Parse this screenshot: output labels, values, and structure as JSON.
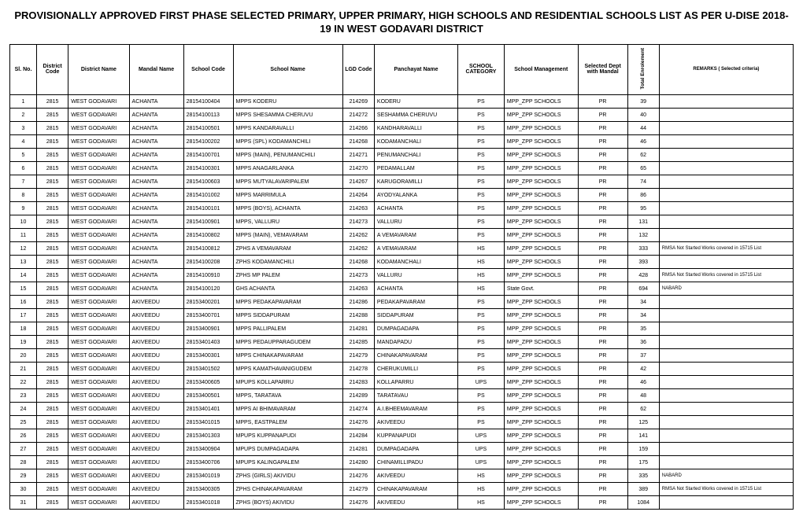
{
  "title": "PROVISIONALLY APPROVED FIRST PHASE SELECTED PRIMARY, UPPER PRIMARY, HIGH SCHOOLS AND RESIDENTIAL SCHOOLS LIST AS PER U-DISE 2018-19 IN WEST GODAVARI DISTRICT",
  "columns": [
    "Sl. No.",
    "District Code",
    "District Name",
    "Mandal Name",
    "School Code",
    "School Name",
    "LGD Code",
    "Panchayat Name",
    "SCHOOL CATEGORY",
    "School Management",
    "Selected Dept with Mandal",
    "Total Enrolement",
    "REMARKS ( Selected criteria)"
  ],
  "rows": [
    [
      "1",
      "2815",
      "WEST GODAVARI",
      "ACHANTA",
      "28154100404",
      "MPPS KODERU",
      "214269",
      "KODERU",
      "PS",
      "MPP_ZPP SCHOOLS",
      "PR",
      "39",
      ""
    ],
    [
      "2",
      "2815",
      "WEST GODAVARI",
      "ACHANTA",
      "28154100113",
      "MPPS SHESAMMA CHERUVU",
      "214272",
      "SESHAMMA CHERUVU",
      "PS",
      "MPP_ZPP SCHOOLS",
      "PR",
      "40",
      ""
    ],
    [
      "3",
      "2815",
      "WEST GODAVARI",
      "ACHANTA",
      "28154100501",
      "MPPS KANDARAVALLI",
      "214266",
      "KANDHARAVALLI",
      "PS",
      "MPP_ZPP SCHOOLS",
      "PR",
      "44",
      ""
    ],
    [
      "4",
      "2815",
      "WEST GODAVARI",
      "ACHANTA",
      "28154100202",
      "MPPS (SPL) KODAMANCHILI",
      "214268",
      "KODAMANCHALI",
      "PS",
      "MPP_ZPP SCHOOLS",
      "PR",
      "46",
      ""
    ],
    [
      "5",
      "2815",
      "WEST GODAVARI",
      "ACHANTA",
      "28154100701",
      "MPPS (MAIN), PENUMANCHILI",
      "214271",
      "PENUMANCHALI",
      "PS",
      "MPP_ZPP SCHOOLS",
      "PR",
      "62",
      ""
    ],
    [
      "6",
      "2815",
      "WEST GODAVARI",
      "ACHANTA",
      "28154100301",
      "MPPS ANAGARLANKA",
      "214270",
      "PEDAMALLAM",
      "PS",
      "MPP_ZPP SCHOOLS",
      "PR",
      "65",
      ""
    ],
    [
      "7",
      "2815",
      "WEST GODAVARI",
      "ACHANTA",
      "28154100603",
      "MPPS MUTYALAVARIPALEM",
      "214267",
      "KARUGORAMILLI",
      "PS",
      "MPP_ZPP SCHOOLS",
      "PR",
      "74",
      ""
    ],
    [
      "8",
      "2815",
      "WEST GODAVARI",
      "ACHANTA",
      "28154101002",
      "MPPS MARRIMULA",
      "214264",
      "AYODYALANKA",
      "PS",
      "MPP_ZPP SCHOOLS",
      "PR",
      "86",
      ""
    ],
    [
      "9",
      "2815",
      "WEST GODAVARI",
      "ACHANTA",
      "28154100101",
      "MPPS (BOYS), ACHANTA",
      "214263",
      "ACHANTA",
      "PS",
      "MPP_ZPP SCHOOLS",
      "PR",
      "95",
      ""
    ],
    [
      "10",
      "2815",
      "WEST GODAVARI",
      "ACHANTA",
      "28154100901",
      "MPPS, VALLURU",
      "214273",
      "VALLURU",
      "PS",
      "MPP_ZPP SCHOOLS",
      "PR",
      "131",
      ""
    ],
    [
      "11",
      "2815",
      "WEST GODAVARI",
      "ACHANTA",
      "28154100802",
      "MPPS (MAIN), VEMAVARAM",
      "214262",
      "A VEMAVARAM",
      "PS",
      "MPP_ZPP SCHOOLS",
      "PR",
      "132",
      ""
    ],
    [
      "12",
      "2815",
      "WEST GODAVARI",
      "ACHANTA",
      "28154100812",
      "ZPHS A VEMAVARAM",
      "214262",
      "A VEMAVARAM",
      "HS",
      "MPP_ZPP SCHOOLS",
      "PR",
      "333",
      "RMSA Not Started Works covered in 15715 List"
    ],
    [
      "13",
      "2815",
      "WEST GODAVARI",
      "ACHANTA",
      "28154100208",
      "ZPHS KODAMANCHILI",
      "214268",
      "KODAMANCHALI",
      "HS",
      "MPP_ZPP SCHOOLS",
      "PR",
      "393",
      ""
    ],
    [
      "14",
      "2815",
      "WEST GODAVARI",
      "ACHANTA",
      "28154100910",
      "ZPHS MP PALEM",
      "214273",
      "VALLURU",
      "HS",
      "MPP_ZPP SCHOOLS",
      "PR",
      "428",
      "RMSA Not Started Works covered in 15715 List"
    ],
    [
      "15",
      "2815",
      "WEST GODAVARI",
      "ACHANTA",
      "28154100120",
      "GHS ACHANTA",
      "214263",
      "ACHANTA",
      "HS",
      "State Govt.",
      "PR",
      "694",
      "NABARD"
    ],
    [
      "16",
      "2815",
      "WEST GODAVARI",
      "AKIVEEDU",
      "28153400201",
      "MPPS PEDAKAPAVARAM",
      "214286",
      "PEDAKAPAVARAM",
      "PS",
      "MPP_ZPP SCHOOLS",
      "PR",
      "34",
      ""
    ],
    [
      "17",
      "2815",
      "WEST GODAVARI",
      "AKIVEEDU",
      "28153400701",
      "MPPS SIDDAPURAM",
      "214288",
      "SIDDAPURAM",
      "PS",
      "MPP_ZPP SCHOOLS",
      "PR",
      "34",
      ""
    ],
    [
      "18",
      "2815",
      "WEST GODAVARI",
      "AKIVEEDU",
      "28153400901",
      "MPPS PALLIPALEM",
      "214281",
      "DUMPAGADAPA",
      "PS",
      "MPP_ZPP SCHOOLS",
      "PR",
      "35",
      ""
    ],
    [
      "19",
      "2815",
      "WEST GODAVARI",
      "AKIVEEDU",
      "28153401403",
      "MPPS PEDAUPPARAGUDEM",
      "214285",
      "MANDAPADU",
      "PS",
      "MPP_ZPP SCHOOLS",
      "PR",
      "36",
      ""
    ],
    [
      "20",
      "2815",
      "WEST GODAVARI",
      "AKIVEEDU",
      "28153400301",
      "MPPS CHINAKAPAVARAM",
      "214279",
      "CHINAKAPAVARAM",
      "PS",
      "MPP_ZPP SCHOOLS",
      "PR",
      "37",
      ""
    ],
    [
      "21",
      "2815",
      "WEST GODAVARI",
      "AKIVEEDU",
      "28153401502",
      "MPPS KAMATHAVANIGUDEM",
      "214278",
      "CHERUKUMILLI",
      "PS",
      "MPP_ZPP SCHOOLS",
      "PR",
      "42",
      ""
    ],
    [
      "22",
      "2815",
      "WEST GODAVARI",
      "AKIVEEDU",
      "28153400605",
      "MPUPS KOLLAPARRU",
      "214283",
      "KOLLAPARRU",
      "UPS",
      "MPP_ZPP SCHOOLS",
      "PR",
      "46",
      ""
    ],
    [
      "23",
      "2815",
      "WEST GODAVARI",
      "AKIVEEDU",
      "28153400501",
      "MPPS, TARATAVA",
      "214289",
      "TARATAVAU",
      "PS",
      "MPP_ZPP SCHOOLS",
      "PR",
      "48",
      ""
    ],
    [
      "24",
      "2815",
      "WEST GODAVARI",
      "AKIVEEDU",
      "28153401401",
      "MPPS AI BHIMAVARAM",
      "214274",
      "A.I.BHEEMAVARAM",
      "PS",
      "MPP_ZPP SCHOOLS",
      "PR",
      "62",
      ""
    ],
    [
      "25",
      "2815",
      "WEST GODAVARI",
      "AKIVEEDU",
      "28153401015",
      "MPPS, EASTPALEM",
      "214276",
      "AKIVEEDU",
      "PS",
      "MPP_ZPP SCHOOLS",
      "PR",
      "125",
      ""
    ],
    [
      "26",
      "2815",
      "WEST GODAVARI",
      "AKIVEEDU",
      "28153401303",
      "MPUPS KUPPANAPUDI",
      "214284",
      "KUPPANAPUDI",
      "UPS",
      "MPP_ZPP SCHOOLS",
      "PR",
      "141",
      ""
    ],
    [
      "27",
      "2815",
      "WEST GODAVARI",
      "AKIVEEDU",
      "28153400904",
      "MPUPS DUMPAGADAPA",
      "214281",
      "DUMPAGADAPA",
      "UPS",
      "MPP_ZPP SCHOOLS",
      "PR",
      "159",
      ""
    ],
    [
      "28",
      "2815",
      "WEST GODAVARI",
      "AKIVEEDU",
      "28153400706",
      "MPUPS KALINGAPALEM",
      "214280",
      "CHINAMILLIPADU",
      "UPS",
      "MPP_ZPP SCHOOLS",
      "PR",
      "175",
      ""
    ],
    [
      "29",
      "2815",
      "WEST GODAVARI",
      "AKIVEEDU",
      "28153401019",
      "ZPHS (GIRLS) AKIVIDU",
      "214276",
      "AKIVEEDU",
      "HS",
      "MPP_ZPP SCHOOLS",
      "PR",
      "335",
      "NABARD"
    ],
    [
      "30",
      "2815",
      "WEST GODAVARI",
      "AKIVEEDU",
      "28153400305",
      "ZPHS CHINAKAPAVARAM",
      "214279",
      "CHINAKAPAVARAM",
      "HS",
      "MPP_ZPP SCHOOLS",
      "PR",
      "389",
      "RMSA Not Started Works covered in 15715 List"
    ],
    [
      "31",
      "2815",
      "WEST GODAVARI",
      "AKIVEEDU",
      "28153401018",
      "ZPHS (BOYS) AKIVIDU",
      "214276",
      "AKIVEEDU",
      "HS",
      "MPP_ZPP SCHOOLS",
      "PR",
      "1084",
      ""
    ]
  ]
}
